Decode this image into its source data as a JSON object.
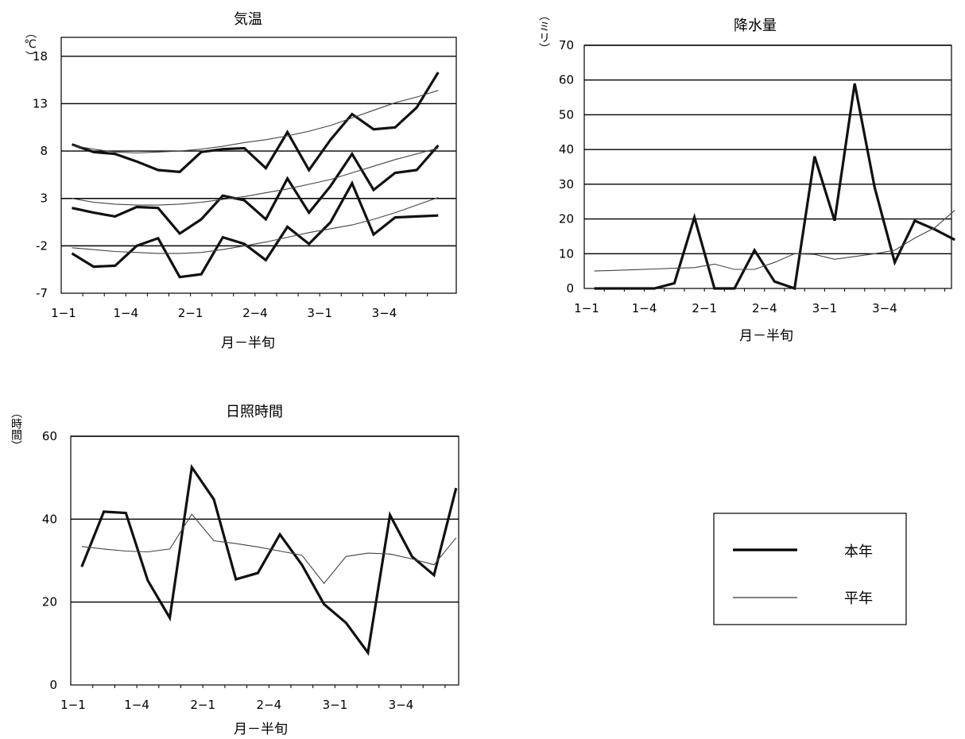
{
  "legend": {
    "this_year": "本年",
    "normal": "平年"
  },
  "chart_data": [
    {
      "type": "line",
      "title": "気温",
      "xlabel": "月－半旬",
      "ylabel": "（℃）",
      "ylim": [
        -7,
        20
      ],
      "yticks": [
        -7,
        -2,
        3,
        8,
        13,
        18
      ],
      "xticklabels": [
        "1-1",
        "1-4",
        "2-1",
        "2-4",
        "3-1",
        "3-4"
      ],
      "series": [
        {
          "name": "本年",
          "group": "max",
          "values": [
            8.7,
            7.9,
            7.7,
            6.9,
            6.0,
            5.8,
            7.9,
            8.2,
            8.3,
            6.2,
            10.0,
            6.0,
            9.2,
            11.9,
            10.3,
            10.5,
            12.6,
            16.3
          ]
        },
        {
          "name": "平年",
          "group": "max",
          "values": [
            8.6,
            8.2,
            7.9,
            7.8,
            7.9,
            8.0,
            8.2,
            8.5,
            8.9,
            9.2,
            9.6,
            10.1,
            10.7,
            11.5,
            12.3,
            13.1,
            13.7,
            14.4
          ]
        },
        {
          "name": "本年",
          "group": "mean",
          "values": [
            2.0,
            1.5,
            1.1,
            2.1,
            2.0,
            -0.7,
            0.8,
            3.3,
            2.8,
            0.8,
            5.1,
            1.5,
            4.3,
            7.7,
            3.9,
            5.7,
            6.0,
            8.6
          ]
        },
        {
          "name": "平年",
          "group": "mean",
          "values": [
            3.0,
            2.6,
            2.4,
            2.3,
            2.3,
            2.4,
            2.6,
            2.9,
            3.2,
            3.6,
            4.0,
            4.5,
            5.0,
            5.7,
            6.4,
            7.1,
            7.7,
            8.3
          ]
        },
        {
          "name": "本年",
          "group": "min",
          "values": [
            -2.8,
            -4.2,
            -4.1,
            -2.0,
            -1.2,
            -5.3,
            -5.0,
            -1.1,
            -1.8,
            -3.5,
            0.0,
            -1.8,
            0.5,
            4.6,
            -0.8,
            1.0,
            1.1,
            1.2
          ]
        },
        {
          "name": "平年",
          "group": "min",
          "values": [
            -2.2,
            -2.4,
            -2.6,
            -2.7,
            -2.8,
            -2.8,
            -2.7,
            -2.4,
            -2.0,
            -1.6,
            -1.1,
            -0.6,
            -0.2,
            0.2,
            0.8,
            1.5,
            2.3,
            3.1
          ]
        }
      ]
    },
    {
      "type": "line",
      "title": "降水量",
      "xlabel": "月－半旬",
      "ylabel": "（ミリ）",
      "ylim": [
        0,
        70
      ],
      "yticks": [
        0,
        10,
        20,
        30,
        40,
        50,
        60,
        70
      ],
      "xticklabels": [
        "1-1",
        "1-4",
        "2-1",
        "2-4",
        "3-1",
        "3-4"
      ],
      "series": [
        {
          "name": "本年",
          "values": [
            0,
            0,
            0,
            0,
            1.5,
            20.5,
            0,
            0,
            11,
            2,
            0,
            38,
            19.5,
            59,
            29,
            7.5,
            19.5,
            17,
            14
          ]
        },
        {
          "name": "平年",
          "values": [
            5,
            5.2,
            5.4,
            5.6,
            5.8,
            6,
            7,
            5.5,
            5.5,
            7.5,
            10,
            9.8,
            8.4,
            9.2,
            10,
            11,
            14.5,
            17.5,
            22.5
          ]
        }
      ]
    },
    {
      "type": "line",
      "title": "日照時間",
      "xlabel": "月－半旬",
      "ylabel": "（時間）",
      "ylim": [
        0,
        60
      ],
      "yticks": [
        0,
        20,
        40,
        60
      ],
      "xticklabels": [
        "1-1",
        "1-4",
        "2-1",
        "2-4",
        "3-1",
        "3-4"
      ],
      "series": [
        {
          "name": "本年",
          "values": [
            28.5,
            41.8,
            41.5,
            25.2,
            16.2,
            52.5,
            44.8,
            25.5,
            27,
            36.3,
            29,
            19.5,
            15,
            7.8,
            41,
            31,
            26.5,
            47.5
          ]
        },
        {
          "name": "平年",
          "values": [
            33.4,
            32.8,
            32.3,
            32.1,
            32.8,
            41.2,
            34.8,
            34.1,
            33.3,
            32.3,
            31.3,
            24.5,
            31,
            31.8,
            31.6,
            30.4,
            29,
            35.5
          ]
        }
      ]
    }
  ]
}
